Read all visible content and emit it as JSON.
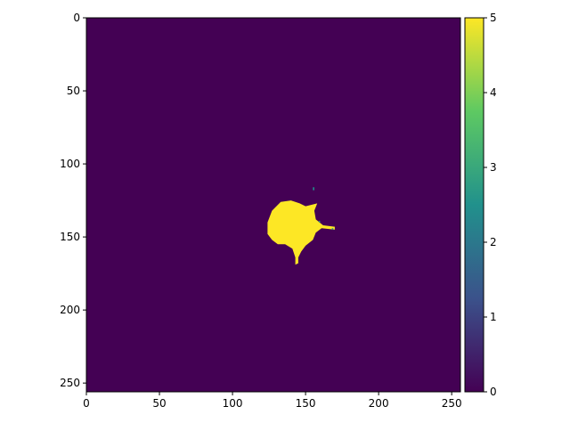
{
  "chart_data": {
    "type": "heatmap",
    "title": "",
    "xlabel": "",
    "ylabel": "",
    "xlim": [
      0,
      256
    ],
    "ylim": [
      256,
      0
    ],
    "x_ticks": [
      0,
      50,
      100,
      150,
      200,
      250
    ],
    "y_ticks": [
      0,
      50,
      100,
      150,
      200,
      250
    ],
    "colormap": "viridis",
    "background_value": 0,
    "colorbar": {
      "range": [
        0,
        5
      ],
      "ticks": [
        0,
        1,
        2,
        3,
        4,
        5
      ],
      "colors": [
        "#440154",
        "#3b528b",
        "#21918c",
        "#5ec962",
        "#fde725"
      ]
    },
    "regions": [
      {
        "value": 5,
        "color": "#fde725",
        "description_points": [
          [
            133,
            126
          ],
          [
            140,
            125
          ],
          [
            146,
            127
          ],
          [
            150,
            129
          ],
          [
            154,
            128
          ],
          [
            158,
            127
          ],
          [
            156,
            132
          ],
          [
            157,
            138
          ],
          [
            162,
            142
          ],
          [
            170,
            143
          ],
          [
            170,
            145
          ],
          [
            161,
            144
          ],
          [
            157,
            147
          ],
          [
            155,
            152
          ],
          [
            150,
            156
          ],
          [
            147,
            160
          ],
          [
            145,
            164
          ],
          [
            145,
            168
          ],
          [
            143,
            169
          ],
          [
            143,
            164
          ],
          [
            141,
            158
          ],
          [
            136,
            155
          ],
          [
            131,
            155
          ],
          [
            127,
            152
          ],
          [
            124,
            148
          ],
          [
            124,
            140
          ],
          [
            127,
            132
          ]
        ]
      }
    ],
    "speckles": [
      {
        "x": 155,
        "y": 116,
        "value": 3
      },
      {
        "x": 155,
        "y": 117,
        "value": 3
      },
      {
        "x": 159,
        "y": 139,
        "value": 3
      },
      {
        "x": 168,
        "y": 144,
        "value": 2
      }
    ]
  }
}
